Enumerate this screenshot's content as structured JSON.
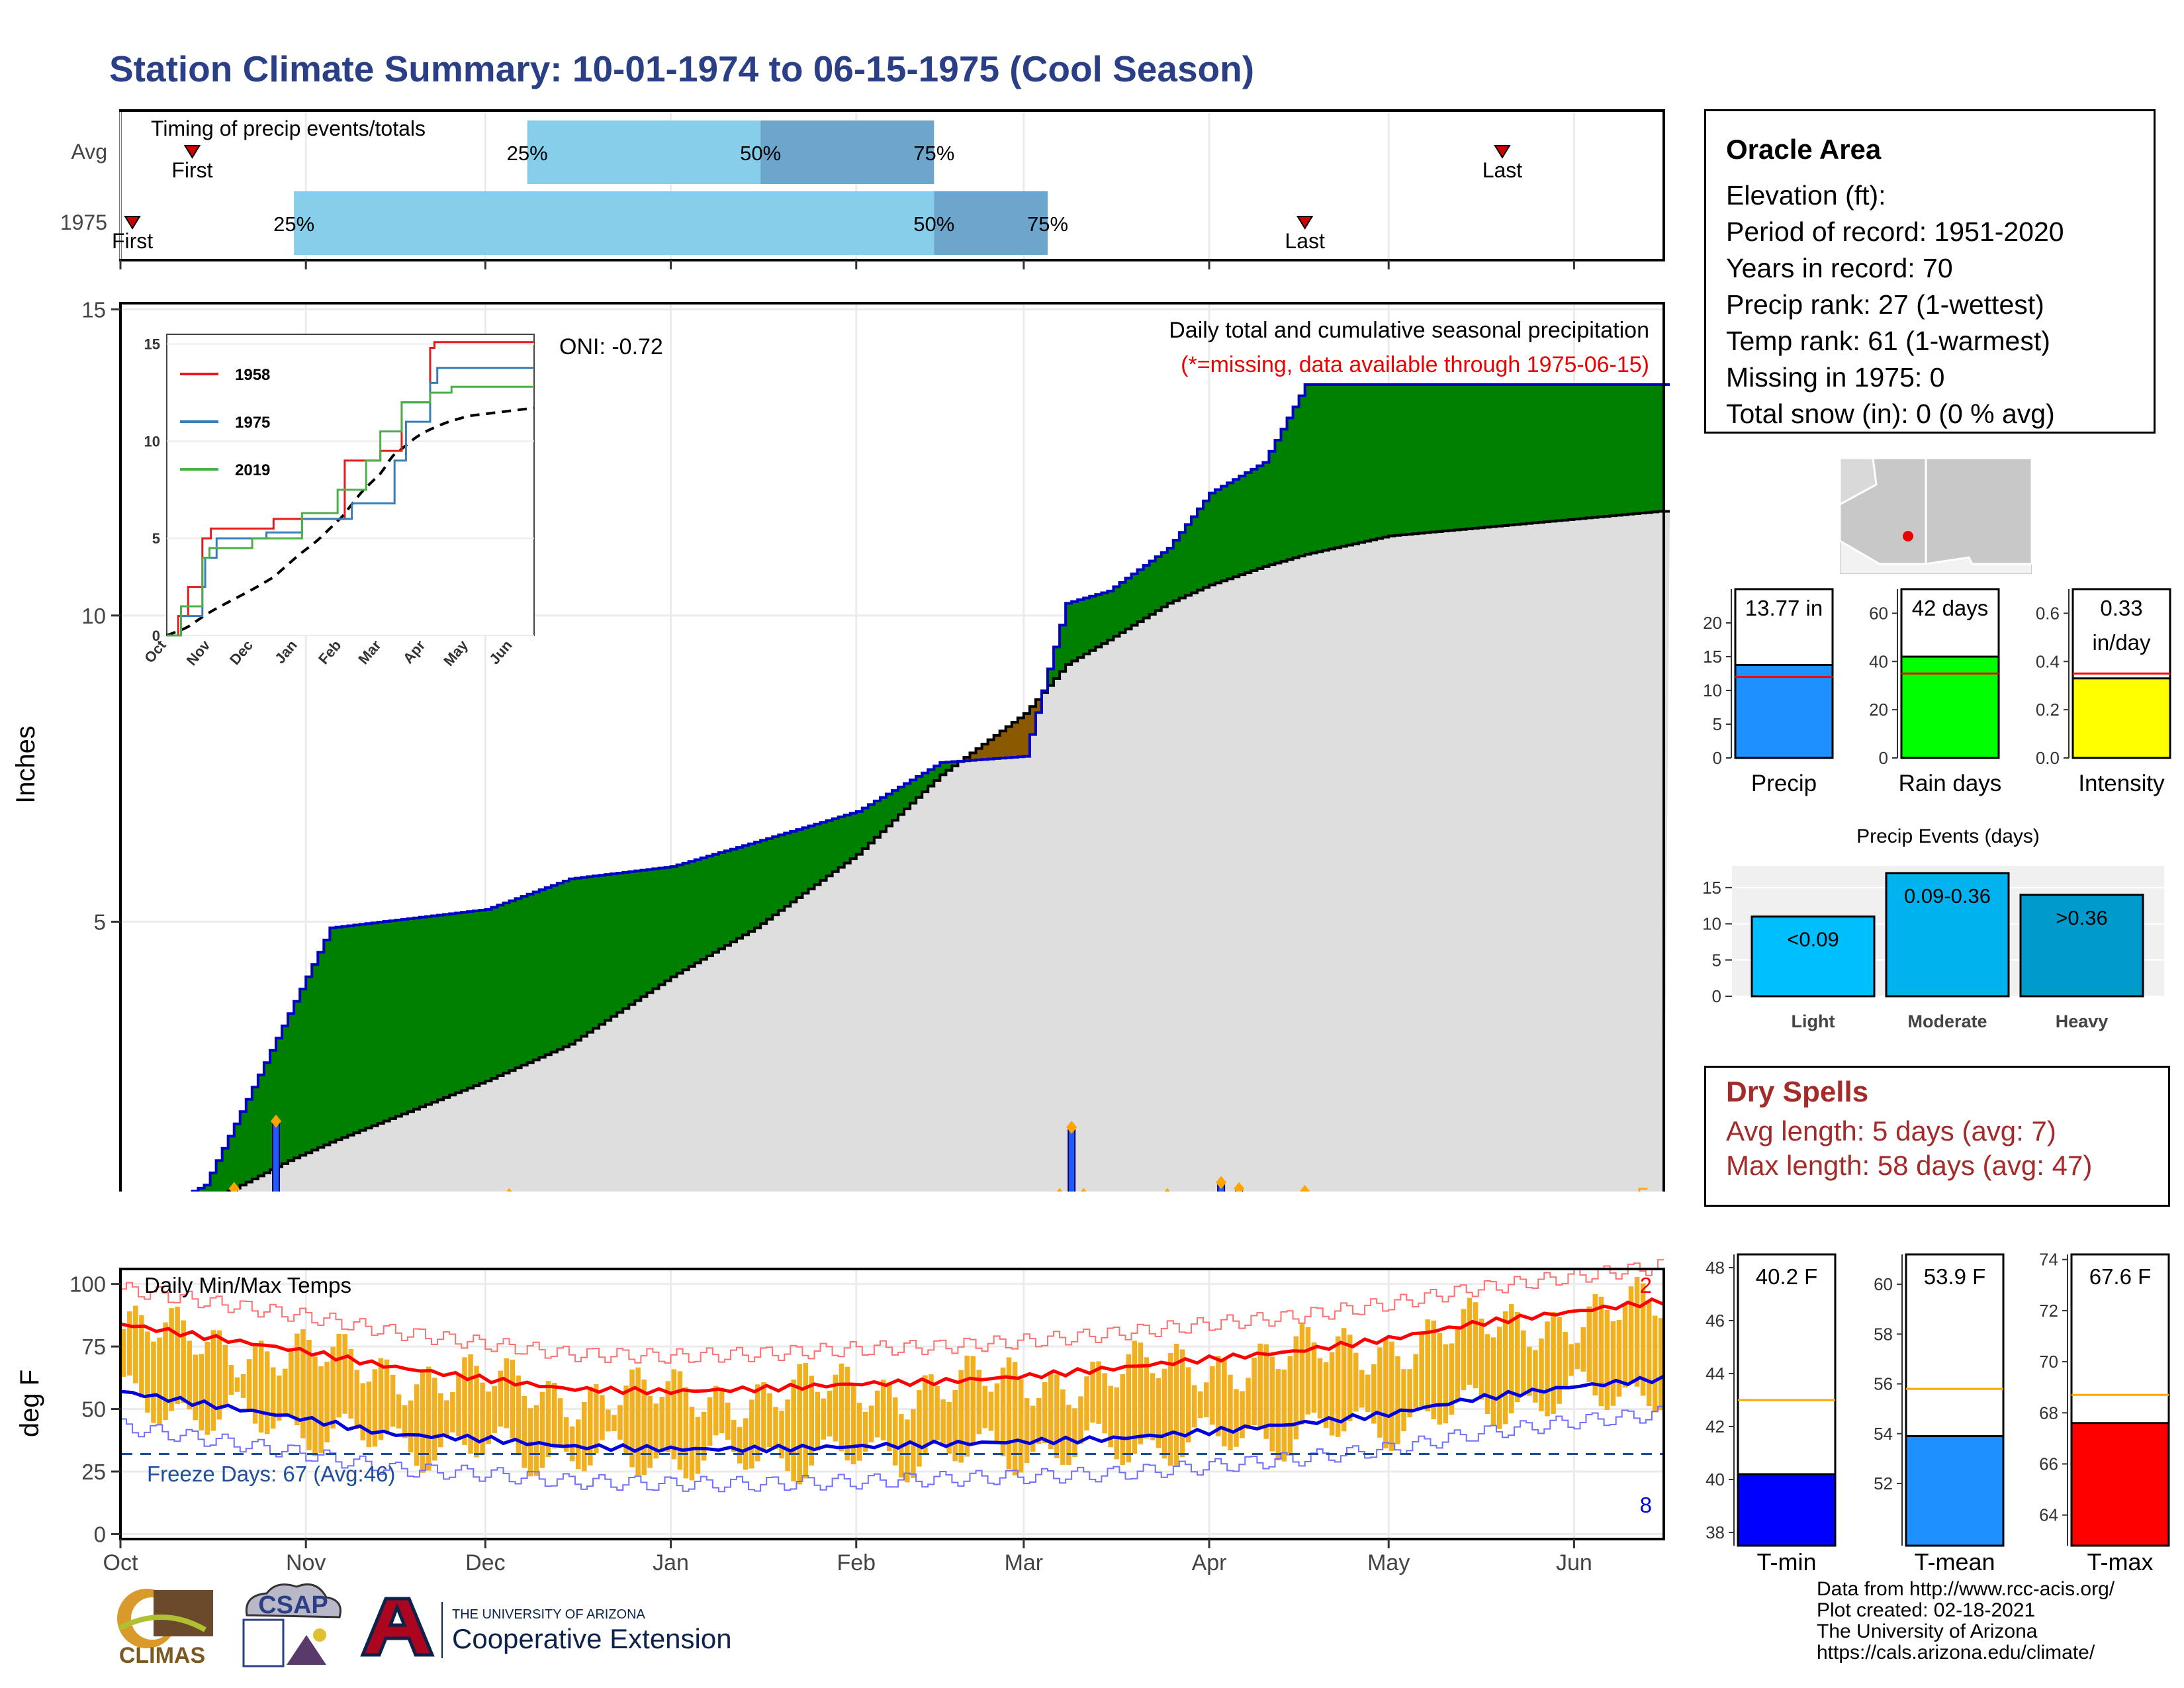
{
  "title": "Station Climate Summary: 10-01-1974 to 06-15-1975 (Cool Season)",
  "timing": {
    "label": "Timing of precip events/totals",
    "rows": [
      {
        "name": "Avg",
        "first": "Oct 13",
        "p25": "Dec 8",
        "p50": "Jan 16",
        "p75": "Feb 14",
        "last": "May 20",
        "first_label": "First",
        "last_label": "Last"
      },
      {
        "name": "1975",
        "first": "Oct 3",
        "p25": "Oct 30",
        "p50": "Feb 14",
        "p75": "Mar 5",
        "last": "Apr 17",
        "first_label": "First",
        "last_label": "Last"
      }
    ],
    "pct_labels": [
      "25%",
      "50%",
      "75%"
    ],
    "colors": {
      "light": "#87ceeb",
      "dark": "#6ca6cd",
      "marker": "#cc0000"
    }
  },
  "main": {
    "ylabel": "Inches",
    "yticks": [
      0,
      5,
      10,
      15
    ],
    "xticks": [
      "Oct",
      "Nov",
      "Dec",
      "Jan",
      "Feb",
      "Mar",
      "Apr",
      "May",
      "Jun"
    ],
    "oni": "ONI: -0.72",
    "subtitle": "Daily total and cumulative seasonal precipitation",
    "missing_note": "(*=missing, data available through 1975-06-15)",
    "count_label": "5",
    "colors": {
      "above": "#008000",
      "below": "#8b5a00",
      "avg_fill": "#dedede",
      "line": "#0000cc",
      "bar": "#1e5cff",
      "marker": "#ffa500"
    }
  },
  "inset": {
    "legend": [
      "1958",
      "1975",
      "2019"
    ],
    "colors": [
      "#e41a1c",
      "#377eb8",
      "#4daf4a"
    ],
    "yticks": [
      "0",
      "5",
      "10",
      "15"
    ],
    "xticks": [
      "Oct",
      "Nov",
      "Dec",
      "Jan",
      "Feb",
      "Mar",
      "Apr",
      "May",
      "Jun"
    ]
  },
  "temps": {
    "label": "Daily Min/Max Temps",
    "ylabel": "deg F",
    "yticks": [
      0,
      25,
      50,
      75,
      100
    ],
    "xticks": [
      "Oct",
      "Nov",
      "Dec",
      "Jan",
      "Feb",
      "Mar",
      "Apr",
      "May",
      "Jun"
    ],
    "freeze": "Freeze Days: 67 (Avg:46)",
    "top_count": "2",
    "bottom_count": "8",
    "colors": {
      "bar": "#f0b020",
      "max": "#ff0000",
      "min": "#0000dd",
      "freeze": "#1f4e9a"
    }
  },
  "station": {
    "name": "Oracle Area",
    "lines": [
      "Elevation (ft):",
      "Period of record: 1951-2020",
      "Years in record: 70",
      "Precip rank: 27 (1-wettest)",
      "Temp rank: 61 (1-warmest)",
      "Missing in 1975: 0",
      "Total snow (in): 0 (0 % avg)"
    ]
  },
  "stats": [
    {
      "label": "Precip",
      "value_text": "13.77 in",
      "value": 13.77,
      "avg": 12.0,
      "ymax": 25,
      "ticks": [
        0,
        5,
        10,
        15,
        20
      ],
      "color": "#1e90ff"
    },
    {
      "label": "Rain days",
      "value_text": "42 days",
      "value": 42,
      "avg": 35,
      "ymax": 70,
      "ticks": [
        0,
        20,
        40,
        60
      ],
      "color": "#00ff00"
    },
    {
      "label": "Intensity",
      "value_text": "0.33\nin/day",
      "value": 0.33,
      "avg": 0.35,
      "ymax": 0.7,
      "ticks": [
        "0.0",
        "0.2",
        "0.4",
        "0.6"
      ],
      "color": "#ffff00"
    }
  ],
  "events": {
    "title": "Precip Events (days)",
    "bars": [
      {
        "label": "Light",
        "value": 11,
        "text": "<0.09",
        "color": "#00bfff"
      },
      {
        "label": "Moderate",
        "value": 17,
        "text": "0.09-0.36",
        "color": "#00b2ee"
      },
      {
        "label": "Heavy",
        "value": 14,
        "text": ">0.36",
        "color": "#009acd"
      }
    ],
    "yticks": [
      0,
      5,
      10,
      15
    ]
  },
  "dry": {
    "title": "Dry Spells",
    "avg": "Avg length: 5 days (avg: 7)",
    "max": "Max length: 58 days (avg: 47)"
  },
  "temp_stats": [
    {
      "label": "T-min",
      "value_text": "40.2 F",
      "value": 40.2,
      "avg": 43.0,
      "ylim": [
        37.5,
        48.5
      ],
      "ticks": [
        38,
        40,
        42,
        44,
        46,
        48
      ],
      "color": "#0000ff"
    },
    {
      "label": "T-mean",
      "value_text": "53.9 F",
      "value": 53.9,
      "avg": 55.8,
      "ylim": [
        49.5,
        61.2
      ],
      "ticks": [
        52,
        54,
        56,
        58,
        60
      ],
      "color": "#1e90ff"
    },
    {
      "label": "T-max",
      "value_text": "67.6 F",
      "value": 67.6,
      "avg": 68.7,
      "ylim": [
        62.8,
        74.2
      ],
      "ticks": [
        64,
        66,
        68,
        70,
        72,
        74
      ],
      "color": "#ff0000"
    }
  ],
  "credits": [
    "Data from http://www.rcc-acis.org/",
    "Plot created: 02-18-2021",
    "The University of Arizona",
    "https://cals.arizona.edu/climate/"
  ],
  "logos": {
    "climas": "CLIMAS",
    "csap": "CSAP",
    "ua_top": "THE UNIVERSITY OF ARIZONA",
    "ua_bottom": "Cooperative Extension"
  },
  "chart_data": [
    {
      "type": "area",
      "title": "Daily total and cumulative seasonal precipitation",
      "ylabel": "Inches",
      "ylim": [
        0,
        15
      ],
      "x": [
        "Oct 1",
        "Oct 15",
        "Oct 29",
        "Nov 5",
        "Dec 1",
        "Dec 15",
        "Jan 1",
        "Jan 15",
        "Feb 1",
        "Feb 15",
        "Mar 1",
        "Mar 8",
        "Mar 15",
        "Mar 25",
        "Apr 1",
        "Apr 10",
        "Apr 17",
        "May 1",
        "Jun 15"
      ],
      "series": [
        {
          "name": "1975",
          "values": [
            0,
            0.7,
            3.5,
            4.9,
            5.2,
            5.7,
            5.9,
            6.3,
            6.8,
            7.6,
            7.7,
            10.2,
            10.4,
            11.1,
            12.0,
            12.5,
            13.77,
            13.77,
            13.77
          ]
        },
        {
          "name": "Avg",
          "values": [
            0,
            0.4,
            1.1,
            1.4,
            2.4,
            3.0,
            4.1,
            4.9,
            6.1,
            7.4,
            8.4,
            9.2,
            9.6,
            10.2,
            10.5,
            10.8,
            11.0,
            11.3,
            11.7
          ]
        }
      ],
      "daily_precip": [
        {
          "date": "Oct 3",
          "value": 0.1
        },
        {
          "date": "Oct 5",
          "value": 0.2
        },
        {
          "date": "Oct 14",
          "value": 0.3
        },
        {
          "date": "Oct 20",
          "value": 0.6
        },
        {
          "date": "Oct 27",
          "value": 1.7
        },
        {
          "date": "Oct 28",
          "value": 0.4
        },
        {
          "date": "Nov 3",
          "value": 0.4
        },
        {
          "date": "Nov 9",
          "value": 0.3
        },
        {
          "date": "Dec 5",
          "value": 0.5
        },
        {
          "date": "Jan 1",
          "value": 0.15
        },
        {
          "date": "Jan 7",
          "value": 0.25
        },
        {
          "date": "Feb 13",
          "value": 0.25
        },
        {
          "date": "Feb 14",
          "value": 0.2
        },
        {
          "date": "Feb 26",
          "value": 0.2
        },
        {
          "date": "Mar 7",
          "value": 0.5
        },
        {
          "date": "Mar 9",
          "value": 1.6
        },
        {
          "date": "Mar 11",
          "value": 0.5
        },
        {
          "date": "Mar 13",
          "value": 0.2
        },
        {
          "date": "Mar 25",
          "value": 0.5
        },
        {
          "date": "Mar 27",
          "value": 0.4
        },
        {
          "date": "Apr 3",
          "value": 0.7
        },
        {
          "date": "Apr 6",
          "value": 0.6
        },
        {
          "date": "Apr 17",
          "value": 0.55
        }
      ]
    },
    {
      "type": "line",
      "title": "Daily Min/Max Temps",
      "ylabel": "deg F",
      "ylim": [
        0,
        100
      ],
      "x": [
        "Oct 1",
        "Oct 15",
        "Nov 1",
        "Nov 15",
        "Dec 1",
        "Dec 15",
        "Jan 1",
        "Jan 15",
        "Feb 1",
        "Feb 15",
        "Mar 1",
        "Mar 15",
        "Apr 1",
        "Apr 15",
        "May 1",
        "May 15",
        "Jun 1",
        "Jun 15"
      ],
      "series": [
        {
          "name": "Avg max",
          "values": [
            84,
            79,
            73,
            67,
            62,
            58,
            57,
            58,
            60,
            61,
            63,
            66,
            70,
            73,
            78,
            84,
            89,
            93
          ]
        },
        {
          "name": "Avg min",
          "values": [
            57,
            52,
            46,
            40,
            38,
            35,
            34,
            34,
            35,
            36,
            37,
            38,
            41,
            44,
            48,
            54,
            59,
            62
          ]
        }
      ],
      "freeze_line": 32
    }
  ]
}
